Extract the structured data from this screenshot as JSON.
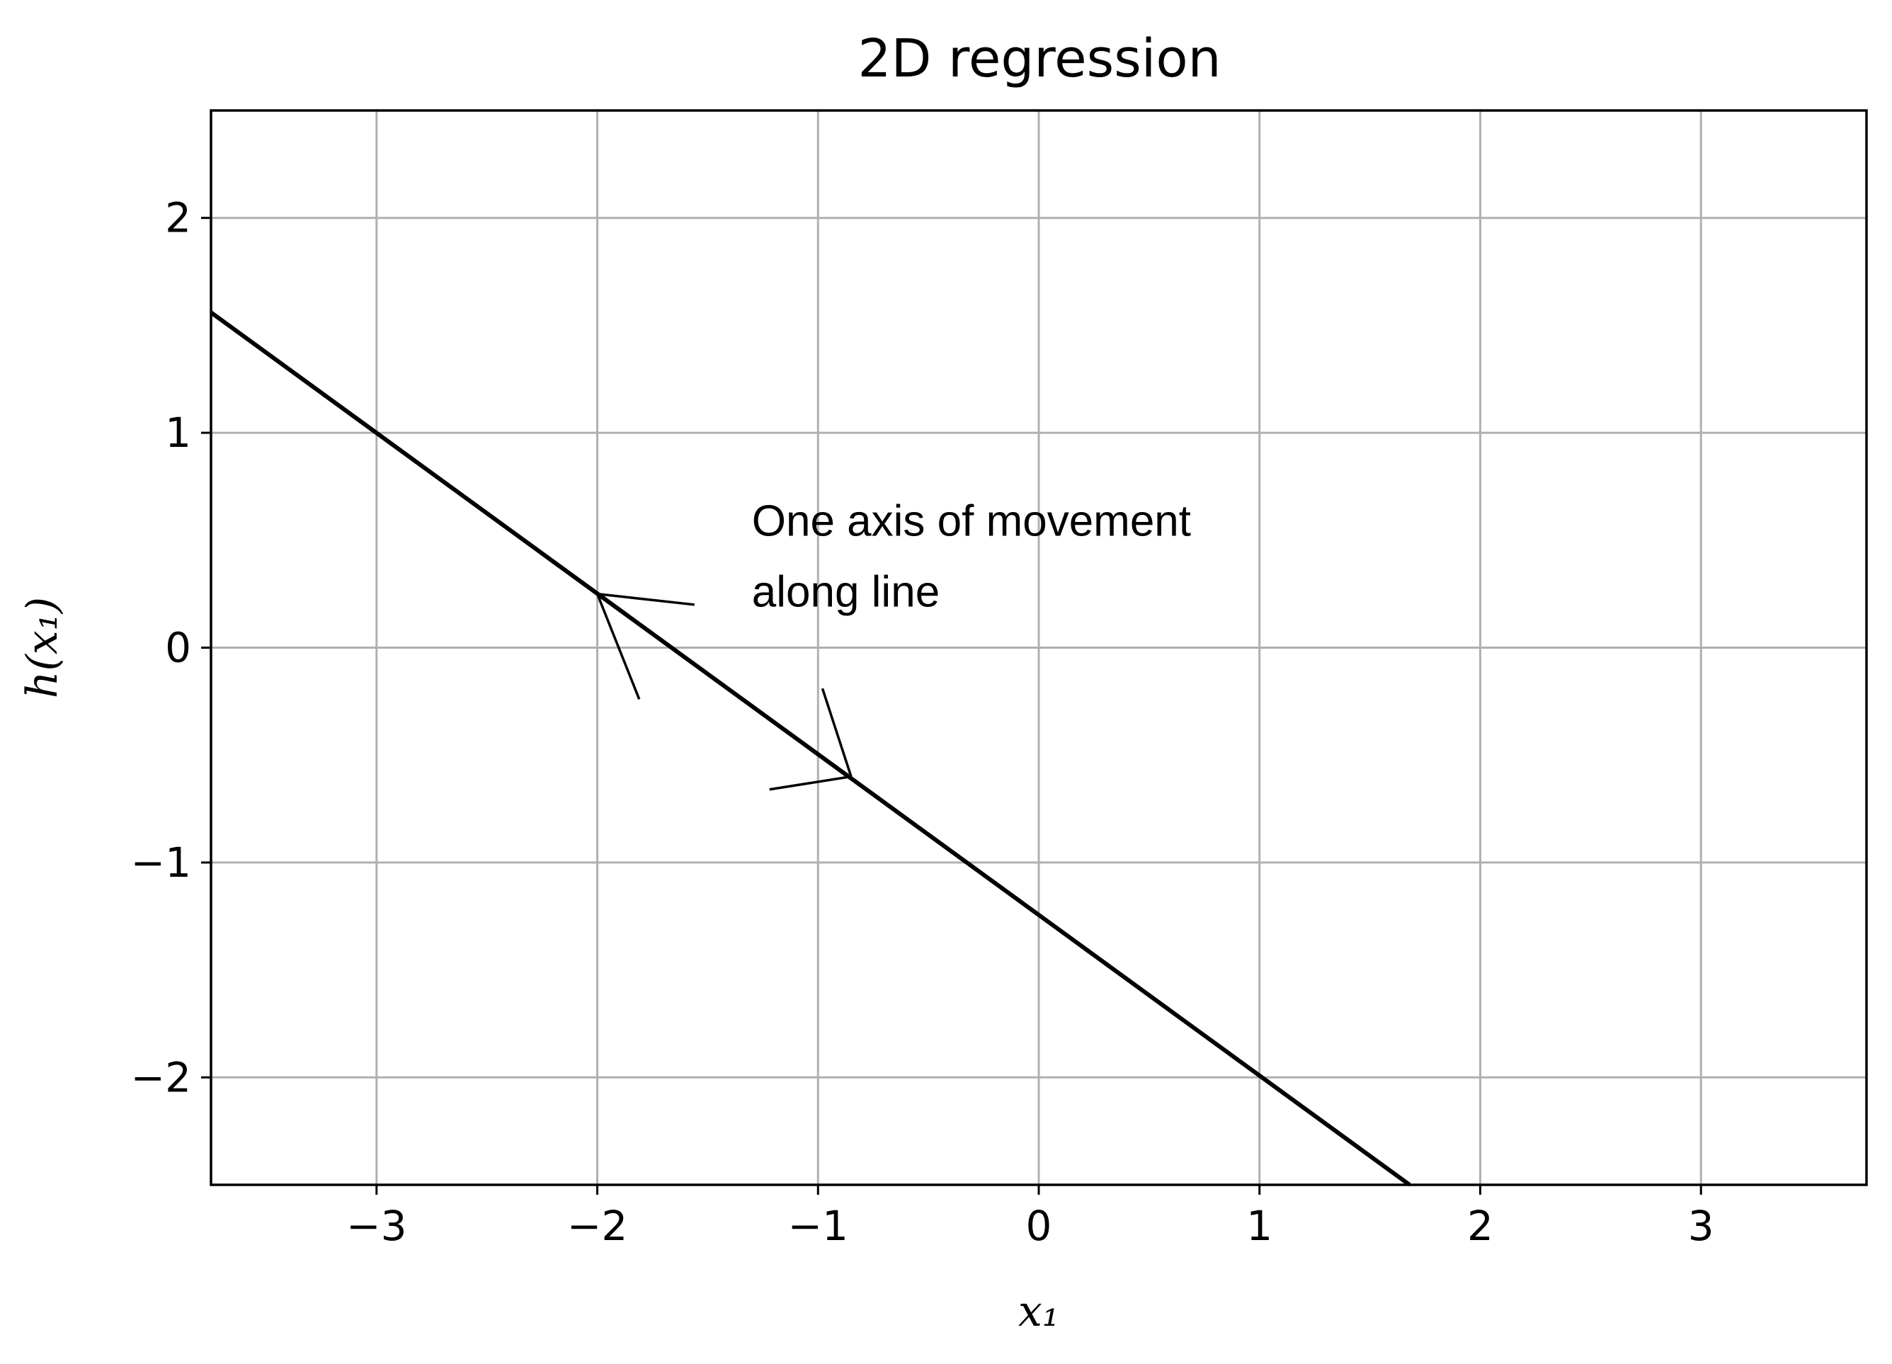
{
  "chart_data": {
    "type": "line",
    "title": "2D regression",
    "xlabel": "x₁",
    "ylabel": "h(x₁)",
    "xlim": [
      -3.75,
      3.75
    ],
    "ylim": [
      -2.5,
      2.5
    ],
    "xticks": [
      -3,
      -2,
      -1,
      0,
      1,
      2,
      3
    ],
    "yticks": [
      -2,
      -1,
      0,
      1,
      2
    ],
    "xtick_labels": [
      "−3",
      "−2",
      "−1",
      "0",
      "1",
      "2",
      "3"
    ],
    "ytick_labels": [
      "−2",
      "−1",
      "0",
      "1",
      "2"
    ],
    "grid": true,
    "series": [
      {
        "x": [
          -3.75,
          1.68
        ],
        "y": [
          1.56,
          -2.5
        ],
        "color": "#000000"
      }
    ],
    "annotation": {
      "lines": [
        "One axis of movement",
        "along line"
      ],
      "x": -1.3,
      "y": 0.52
    },
    "arrows": [
      {
        "tip": [
          -2.0,
          0.25
        ],
        "barbs": [
          [
            -1.56,
            0.2
          ],
          [
            -1.81,
            -0.24
          ]
        ]
      },
      {
        "tip": [
          -0.85,
          -0.6
        ],
        "barbs": [
          [
            -0.98,
            -0.19
          ],
          [
            -1.22,
            -0.66
          ]
        ]
      }
    ]
  }
}
